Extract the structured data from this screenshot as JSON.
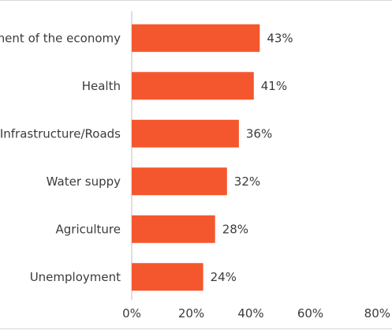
{
  "chart_data": {
    "type": "bar",
    "orientation": "horizontal",
    "categories": [
      "Management of the economy",
      "Health",
      "Infrastructure/Roads",
      "Water suppy",
      "Agriculture",
      "Unemployment"
    ],
    "values": [
      43,
      41,
      36,
      32,
      28,
      24
    ],
    "value_labels": [
      "43%",
      "41%",
      "36%",
      "32%",
      "28%",
      "24%"
    ],
    "xlim": [
      0,
      80
    ],
    "x_ticks": [
      0,
      20,
      40,
      60,
      80
    ],
    "x_tick_labels": [
      "0%",
      "20%",
      "40%",
      "60%",
      "80%"
    ],
    "bar_color": "#f4572e",
    "grid": false,
    "legend": "none"
  }
}
